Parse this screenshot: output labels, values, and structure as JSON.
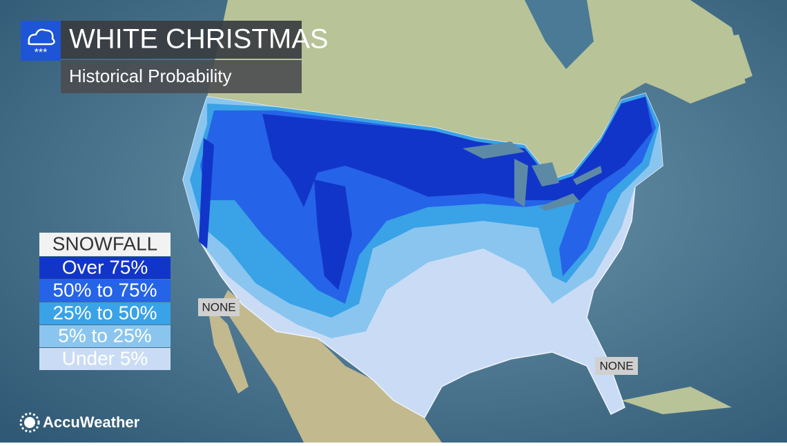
{
  "header": {
    "title": "WHITE CHRISTMAS",
    "subtitle": "Historical Probability"
  },
  "legend": {
    "title": "SNOWFALL",
    "items": [
      {
        "label": "Over 75%",
        "color": "#1235c9"
      },
      {
        "label": "50% to 75%",
        "color": "#2563e8"
      },
      {
        "label": "25% to 50%",
        "color": "#3aa2e6"
      },
      {
        "label": "5% to 25%",
        "color": "#8ac5ef"
      },
      {
        "label": "Under 5%",
        "color": "#cadcf5"
      }
    ]
  },
  "map": {
    "labels": [
      "NONE",
      "NONE"
    ]
  },
  "footer": {
    "brand": "AccuWeather"
  }
}
